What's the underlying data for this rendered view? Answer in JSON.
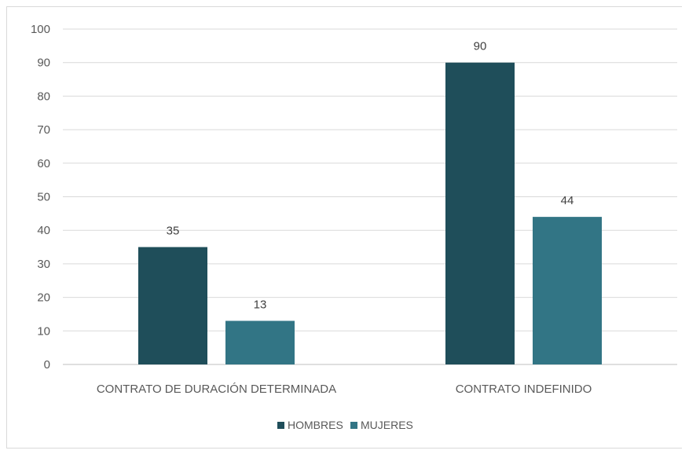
{
  "chart_data": {
    "type": "bar",
    "categories": [
      "CONTRATO DE DURACIÓN DETERMINADA",
      "CONTRATO INDEFINIDO"
    ],
    "series": [
      {
        "name": "HOMBRES",
        "values": [
          35,
          90
        ],
        "color": "#1f4e5a"
      },
      {
        "name": "MUJERES",
        "values": [
          13,
          44
        ],
        "color": "#327585"
      }
    ],
    "yticks": [
      "0",
      "10",
      "20",
      "30",
      "40",
      "50",
      "60",
      "70",
      "80",
      "90",
      "100"
    ],
    "ylim": [
      0,
      100
    ],
    "grid": true,
    "legend_position": "bottom",
    "data_labels": true,
    "colors": {
      "gridline": "#d9d9d9",
      "axis": "#bfbfbf",
      "text": "#595959"
    }
  }
}
